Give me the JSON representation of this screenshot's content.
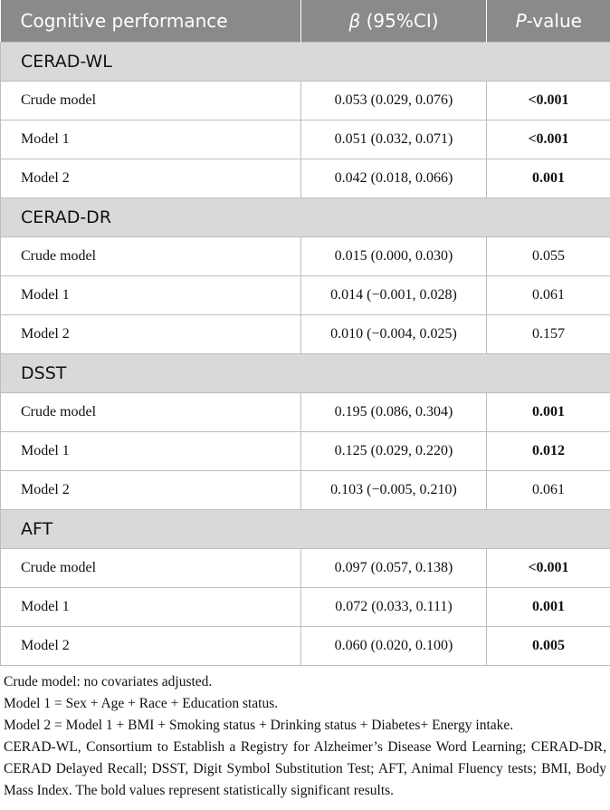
{
  "table": {
    "header": [
      [
        {
          "text": "Cognitive performance",
          "italic": false
        }
      ],
      [
        {
          "text": "β",
          "italic": true
        },
        {
          "text": " (95%CI)",
          "italic": false
        }
      ],
      [
        {
          "text": "P",
          "italic": true
        },
        {
          "text": "-value",
          "italic": false
        }
      ]
    ],
    "groups": [
      {
        "name": "CERAD-WL",
        "rows": [
          {
            "model": "Crude model",
            "beta": "0.053 (0.029, 0.076)",
            "p": "<0.001",
            "bold": true
          },
          {
            "model": "Model 1",
            "beta": "0.051 (0.032, 0.071)",
            "p": "<0.001",
            "bold": true
          },
          {
            "model": "Model 2",
            "beta": "0.042 (0.018, 0.066)",
            "p": "0.001",
            "bold": true
          }
        ]
      },
      {
        "name": "CERAD-DR",
        "rows": [
          {
            "model": "Crude model",
            "beta": "0.015 (0.000, 0.030)",
            "p": "0.055",
            "bold": false
          },
          {
            "model": "Model 1",
            "beta": "0.014 (−0.001, 0.028)",
            "p": "0.061",
            "bold": false
          },
          {
            "model": "Model 2",
            "beta": "0.010 (−0.004, 0.025)",
            "p": "0.157",
            "bold": false
          }
        ]
      },
      {
        "name": "DSST",
        "rows": [
          {
            "model": "Crude model",
            "beta": "0.195 (0.086, 0.304)",
            "p": "0.001",
            "bold": true
          },
          {
            "model": "Model 1",
            "beta": "0.125 (0.029, 0.220)",
            "p": "0.012",
            "bold": true
          },
          {
            "model": "Model 2",
            "beta": "0.103 (−0.005, 0.210)",
            "p": "0.061",
            "bold": false
          }
        ]
      },
      {
        "name": "AFT",
        "rows": [
          {
            "model": "Crude model",
            "beta": "0.097 (0.057, 0.138)",
            "p": "<0.001",
            "bold": true
          },
          {
            "model": "Model 1",
            "beta": "0.072 (0.033, 0.111)",
            "p": "0.001",
            "bold": true
          },
          {
            "model": "Model 2",
            "beta": "0.060 (0.020, 0.100)",
            "p": "0.005",
            "bold": true
          }
        ]
      }
    ]
  },
  "notes": [
    "Crude model: no covariates adjusted.",
    "Model 1 = Sex + Age + Race + Education status.",
    "Model 2 = Model 1 + BMI + Smoking status + Drinking status + Diabetes+ Energy intake.",
    "CERAD-WL, Consortium to Establish a Registry for Alzheimer’s Disease Word Learning; CERAD-DR, CERAD Delayed Recall; DSST, Digit Symbol Substitution Test; AFT, Animal Fluency tests; BMI, Body Mass Index. The bold values represent statistically significant results."
  ]
}
